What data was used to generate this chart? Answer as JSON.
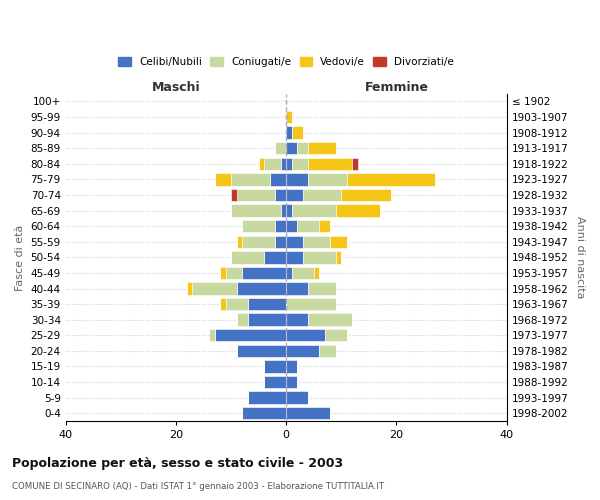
{
  "age_groups": [
    "0-4",
    "5-9",
    "10-14",
    "15-19",
    "20-24",
    "25-29",
    "30-34",
    "35-39",
    "40-44",
    "45-49",
    "50-54",
    "55-59",
    "60-64",
    "65-69",
    "70-74",
    "75-79",
    "80-84",
    "85-89",
    "90-94",
    "95-99",
    "100+"
  ],
  "birth_years": [
    "1998-2002",
    "1993-1997",
    "1988-1992",
    "1983-1987",
    "1978-1982",
    "1973-1977",
    "1968-1972",
    "1963-1967",
    "1958-1962",
    "1953-1957",
    "1948-1952",
    "1943-1947",
    "1938-1942",
    "1933-1937",
    "1928-1932",
    "1923-1927",
    "1918-1922",
    "1913-1917",
    "1908-1912",
    "1903-1907",
    "≤ 1902"
  ],
  "maschi": {
    "celibi": [
      8,
      7,
      4,
      4,
      9,
      13,
      7,
      7,
      9,
      8,
      4,
      2,
      2,
      1,
      2,
      3,
      1,
      0,
      0,
      0,
      0
    ],
    "coniugati": [
      0,
      0,
      0,
      0,
      0,
      1,
      2,
      4,
      8,
      3,
      6,
      6,
      6,
      9,
      7,
      7,
      3,
      2,
      0,
      0,
      0
    ],
    "vedovi": [
      0,
      0,
      0,
      0,
      0,
      0,
      0,
      1,
      1,
      1,
      0,
      1,
      0,
      0,
      0,
      3,
      1,
      0,
      0,
      0,
      0
    ],
    "divorziati": [
      0,
      0,
      0,
      0,
      0,
      0,
      0,
      0,
      0,
      0,
      0,
      0,
      0,
      0,
      1,
      0,
      0,
      0,
      0,
      0,
      0
    ]
  },
  "femmine": {
    "nubili": [
      8,
      4,
      2,
      2,
      6,
      7,
      4,
      0,
      4,
      1,
      3,
      3,
      2,
      1,
      3,
      4,
      1,
      2,
      1,
      0,
      0
    ],
    "coniugate": [
      0,
      0,
      0,
      0,
      3,
      4,
      8,
      9,
      5,
      4,
      6,
      5,
      4,
      8,
      7,
      7,
      3,
      2,
      0,
      0,
      0
    ],
    "vedove": [
      0,
      0,
      0,
      0,
      0,
      0,
      0,
      0,
      0,
      1,
      1,
      3,
      2,
      8,
      9,
      16,
      8,
      5,
      2,
      1,
      0
    ],
    "divorziate": [
      0,
      0,
      0,
      0,
      0,
      0,
      0,
      0,
      0,
      0,
      0,
      0,
      0,
      0,
      0,
      0,
      1,
      0,
      0,
      0,
      0
    ]
  },
  "colors": {
    "celibi_nubili": "#4472C4",
    "coniugati": "#C8D9A0",
    "vedovi": "#F5C518",
    "divorziati": "#C0392B"
  },
  "xlim": [
    -40,
    40
  ],
  "xticks": [
    -40,
    -20,
    0,
    20,
    40
  ],
  "xticklabels": [
    "40",
    "20",
    "0",
    "20",
    "40"
  ],
  "title": "Popolazione per età, sesso e stato civile - 2003",
  "subtitle": "COMUNE DI SECINARO (AQ) - Dati ISTAT 1° gennaio 2003 - Elaborazione TUTTITALIA.IT",
  "ylabel_left": "Fasce di età",
  "ylabel_right": "Anni di nascita",
  "maschi_label": "Maschi",
  "femmine_label": "Femmine",
  "legend_labels": [
    "Celibi/Nubili",
    "Coniugati/e",
    "Vedovi/e",
    "Divorziati/e"
  ],
  "bg_color": "#ffffff",
  "grid_color": "#cccccc",
  "bar_height": 0.8
}
